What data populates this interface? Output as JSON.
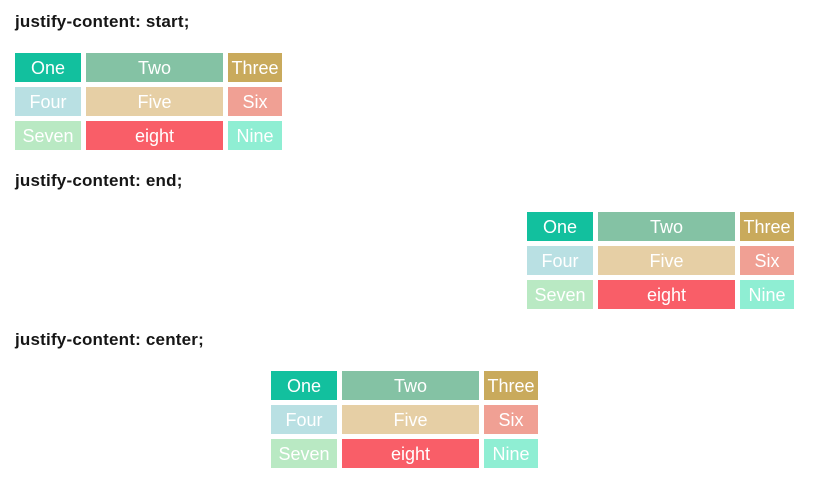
{
  "page": {
    "background": "#ffffff",
    "title_color": "#161616",
    "cell_text_color": "#ffffff"
  },
  "sections": [
    {
      "id": "start",
      "title": "justify-content: start;",
      "justify": "start"
    },
    {
      "id": "end",
      "title": "justify-content: end;",
      "justify": "end"
    },
    {
      "id": "center",
      "title": "justify-content: center;",
      "justify": "center"
    }
  ],
  "grid": {
    "cells": [
      {
        "label": "One",
        "color": "#12c09e"
      },
      {
        "label": "Two",
        "color": "#84c2a4"
      },
      {
        "label": "Three",
        "color": "#c9aa5c"
      },
      {
        "label": "Four",
        "color": "#b9e0e3"
      },
      {
        "label": "Five",
        "color": "#e6cfa5"
      },
      {
        "label": "Six",
        "color": "#f0a094"
      },
      {
        "label": "Seven",
        "color": "#b9e9c3"
      },
      {
        "label": "eight",
        "color": "#f95e68"
      },
      {
        "label": "Nine",
        "color": "#8feed3"
      }
    ]
  }
}
